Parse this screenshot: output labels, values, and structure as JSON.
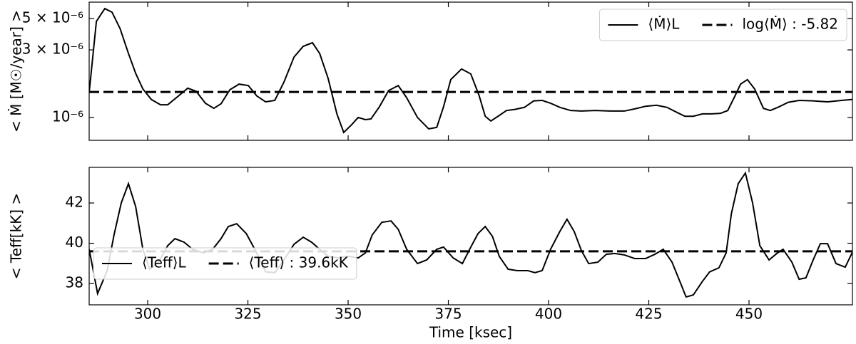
{
  "chart_data": [
    {
      "type": "line",
      "ylabel": "< Ṁ [M☉/year] >",
      "x": [
        285.4,
        287.2,
        289.3,
        291.1,
        293.1,
        295.2,
        297.0,
        298.8,
        300.9,
        303.2,
        305.0,
        307.7,
        310.0,
        312.1,
        314.4,
        316.5,
        318.3,
        320.5,
        322.8,
        325.1,
        327.2,
        329.4,
        331.7,
        334.0,
        336.5,
        338.8,
        341.1,
        342.9,
        345.0,
        347.2,
        348.9,
        350.9,
        352.5,
        354.3,
        355.7,
        357.8,
        360.1,
        362.5,
        364.6,
        367.3,
        370.1,
        372.1,
        373.8,
        375.6,
        378.3,
        380.6,
        382.7,
        384.2,
        385.6,
        387.4,
        389.5,
        391.6,
        394.0,
        396.3,
        398.4,
        400.5,
        402.8,
        405.5,
        408.2,
        411.7,
        415.3,
        418.9,
        421.5,
        424.2,
        426.9,
        429.5,
        432.2,
        434.0,
        436.1,
        438.4,
        440.7,
        442.9,
        444.7,
        446.4,
        447.9,
        449.6,
        451.4,
        453.6,
        455.3,
        457.5,
        459.8,
        462.5,
        466.0,
        469.6,
        473.1,
        475.8
      ],
      "series": [
        {
          "name": "⟨Ṁ⟩L",
          "color": "#000000",
          "values": [
            1.5e-06,
            4.77e-06,
            5.87e-06,
            5.54e-06,
            4.25e-06,
            2.83e-06,
            2.05e-06,
            1.59e-06,
            1.34e-06,
            1.23e-06,
            1.23e-06,
            1.42e-06,
            1.61e-06,
            1.53e-06,
            1.26e-06,
            1.16e-06,
            1.25e-06,
            1.57e-06,
            1.72e-06,
            1.68e-06,
            1.42e-06,
            1.29e-06,
            1.32e-06,
            1.78e-06,
            2.67e-06,
            3.18e-06,
            3.37e-06,
            2.83e-06,
            1.89e-06,
            1.06e-06,
            7.84e-07,
            8.91e-07,
            1e-06,
            9.66e-07,
            9.77e-07,
            1.19e-06,
            1.55e-06,
            1.68e-06,
            1.38e-06,
            1e-06,
            8.31e-07,
            8.51e-07,
            1.19e-06,
            1.85e-06,
            2.2e-06,
            2.03e-06,
            1.42e-06,
            1.02e-06,
            9.44e-07,
            1.02e-06,
            1.12e-06,
            1.14e-06,
            1.18e-06,
            1.31e-06,
            1.32e-06,
            1.26e-06,
            1.18e-06,
            1.12e-06,
            1.11e-06,
            1.12e-06,
            1.11e-06,
            1.11e-06,
            1.15e-06,
            1.2e-06,
            1.22e-06,
            1.18e-06,
            1.08e-06,
            1.02e-06,
            1.02e-06,
            1.06e-06,
            1.06e-06,
            1.07e-06,
            1.12e-06,
            1.4e-06,
            1.72e-06,
            1.85e-06,
            1.59e-06,
            1.16e-06,
            1.12e-06,
            1.19e-06,
            1.28e-06,
            1.32e-06,
            1.31e-06,
            1.29e-06,
            1.32e-06,
            1.34e-06
          ]
        }
      ],
      "reference_lines": [
        {
          "name": "log⟨Ṁ⟩ :  -5.82",
          "value": 1.5136e-06,
          "color": "#000000",
          "dashed": true
        }
      ],
      "xlim": [
        285.4,
        475.8
      ],
      "ylim": [
        6.9e-07,
        6.52e-06
      ],
      "ylog": true,
      "xticks": [
        300,
        325,
        350,
        375,
        400,
        425,
        450
      ],
      "xtick_labels": false,
      "yticks": [
        {
          "value": 1e-06,
          "label": "10⁻⁶"
        },
        {
          "value": 3e-06,
          "label": "3 × 10⁻⁶"
        },
        {
          "value": 5e-06,
          "label": "5 × 10⁻⁶"
        }
      ],
      "legend": "upper right"
    },
    {
      "type": "line",
      "ylabel": "< Teff[kK] >",
      "xlabel": "Time [ksec]",
      "x": [
        285.4,
        287.5,
        289.9,
        291.6,
        293.4,
        295.2,
        297.0,
        298.8,
        300.5,
        302.7,
        305.0,
        306.8,
        309.1,
        311.2,
        313.9,
        316.2,
        318.3,
        320.1,
        322.2,
        324.6,
        326.9,
        329.4,
        331.7,
        334.0,
        336.5,
        338.8,
        340.9,
        342.9,
        345.0,
        347.7,
        350.0,
        352.5,
        354.3,
        356.0,
        358.4,
        360.7,
        362.5,
        364.6,
        367.3,
        369.6,
        372.1,
        373.8,
        376.2,
        378.5,
        380.6,
        382.4,
        384.2,
        386.0,
        387.7,
        389.9,
        392.2,
        394.8,
        396.6,
        398.4,
        400.5,
        402.8,
        404.6,
        406.4,
        408.2,
        410.0,
        412.3,
        414.4,
        416.5,
        418.9,
        421.5,
        424.2,
        426.5,
        428.6,
        430.8,
        433.1,
        434.3,
        436.1,
        438.4,
        440.2,
        442.5,
        444.3,
        445.6,
        447.3,
        449.1,
        450.9,
        452.7,
        455.0,
        457.1,
        458.5,
        460.7,
        462.5,
        464.2,
        466.0,
        467.8,
        469.6,
        471.7,
        474.0,
        475.8
      ],
      "series": [
        {
          "name": "⟨Teff⟩L",
          "color": "#000000",
          "values": [
            39.7,
            37.5,
            38.64,
            40.41,
            42.0,
            42.96,
            41.82,
            39.7,
            38.71,
            39.06,
            39.88,
            40.23,
            40.05,
            39.7,
            39.52,
            39.7,
            40.23,
            40.83,
            40.97,
            40.48,
            39.63,
            38.58,
            38.54,
            39.17,
            39.95,
            40.3,
            40.05,
            39.7,
            39.35,
            39.27,
            39.35,
            39.27,
            39.52,
            40.41,
            41.04,
            41.11,
            40.69,
            39.7,
            38.99,
            39.17,
            39.7,
            39.81,
            39.27,
            38.99,
            39.81,
            40.48,
            40.83,
            40.34,
            39.35,
            38.71,
            38.64,
            38.64,
            38.54,
            38.64,
            39.7,
            40.58,
            41.19,
            40.58,
            39.63,
            38.99,
            39.06,
            39.45,
            39.49,
            39.42,
            39.24,
            39.24,
            39.45,
            39.7,
            39.06,
            37.93,
            37.33,
            37.43,
            38.11,
            38.58,
            38.78,
            39.52,
            41.47,
            42.96,
            43.49,
            42.0,
            39.88,
            39.17,
            39.52,
            39.7,
            39.06,
            38.21,
            38.28,
            39.17,
            39.98,
            39.98,
            38.99,
            38.81,
            39.56
          ]
        }
      ],
      "reference_lines": [
        {
          "name": "⟨Teff⟩ :  39.6kK",
          "value": 39.6,
          "color": "#000000",
          "dashed": true
        }
      ],
      "xlim": [
        285.4,
        475.8
      ],
      "ylim": [
        36.94,
        43.77
      ],
      "ylog": false,
      "xticks": [
        300,
        325,
        350,
        375,
        400,
        425,
        450
      ],
      "yticks": [
        38,
        40,
        42
      ],
      "legend": "lower left"
    }
  ]
}
